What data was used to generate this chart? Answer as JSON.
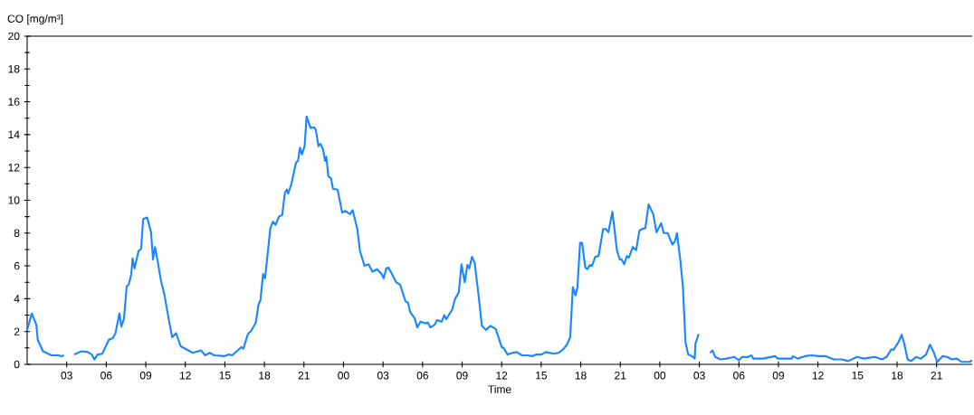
{
  "chart_data": {
    "type": "line",
    "xlabel": "Time",
    "ylabel": "CO [mg/m³]",
    "xlim": [
      0,
      71.7
    ],
    "ylim": [
      0,
      20
    ],
    "xticks": [
      {
        "value": 3,
        "label": "03"
      },
      {
        "value": 6,
        "label": "06"
      },
      {
        "value": 9,
        "label": "09"
      },
      {
        "value": 12,
        "label": "12"
      },
      {
        "value": 15,
        "label": "15"
      },
      {
        "value": 18,
        "label": "18"
      },
      {
        "value": 21,
        "label": "21"
      },
      {
        "value": 24,
        "label": "00"
      },
      {
        "value": 27,
        "label": "03"
      },
      {
        "value": 30,
        "label": "06"
      },
      {
        "value": 33,
        "label": "09"
      },
      {
        "value": 36,
        "label": "12"
      },
      {
        "value": 39,
        "label": "15"
      },
      {
        "value": 42,
        "label": "18"
      },
      {
        "value": 45,
        "label": "21"
      },
      {
        "value": 48,
        "label": "00"
      },
      {
        "value": 51,
        "label": "03"
      },
      {
        "value": 54,
        "label": "06"
      },
      {
        "value": 57,
        "label": "09"
      },
      {
        "value": 60,
        "label": "12"
      },
      {
        "value": 63,
        "label": "15"
      },
      {
        "value": 66,
        "label": "18"
      },
      {
        "value": 69,
        "label": "21"
      }
    ],
    "yticks": [
      0,
      {
        "value": 1,
        "label": null
      },
      2,
      {
        "value": 3,
        "label": null
      },
      4,
      {
        "value": 5,
        "label": null
      },
      6,
      {
        "value": 7,
        "label": null
      },
      8,
      {
        "value": 9,
        "label": null
      },
      10,
      {
        "value": 11,
        "label": null
      },
      12,
      {
        "value": 13,
        "label": null
      },
      14,
      {
        "value": 15,
        "label": null
      },
      16,
      {
        "value": 17,
        "label": null
      },
      18,
      {
        "value": 19,
        "label": null
      },
      20
    ],
    "grid": false,
    "marker": "none",
    "line_style": "solid",
    "series": [
      {
        "color": "#1a87ff",
        "x": [
          0,
          0.35,
          0.7,
          0.8,
          1.2,
          1.85,
          2.4,
          2.6,
          2.8,
          3.2,
          3.57,
          4.1,
          4.6,
          4.9,
          5.1,
          5.35,
          5.7,
          6.2,
          6.5,
          6.7,
          7.0,
          7.15,
          7.35,
          7.55,
          7.7,
          7.9,
          8.0,
          8.15,
          8.45,
          8.65,
          8.8,
          9.1,
          9.4,
          9.55,
          9.7,
          9.9,
          10.15,
          10.4,
          10.8,
          11.0,
          11.3,
          11.65,
          12.35,
          12.55,
          13.2,
          13.5,
          13.85,
          14.2,
          14.95,
          15.3,
          15.55,
          16.25,
          16.4,
          16.75,
          17.0,
          17.35,
          17.55,
          17.7,
          17.9,
          18.05,
          18.45,
          18.65,
          18.85,
          19.1,
          19.35,
          19.55,
          19.7,
          19.8,
          20.05,
          20.4,
          20.55,
          20.7,
          20.85,
          21.05,
          21.2,
          21.5,
          21.75,
          21.9,
          22.1,
          22.25,
          22.45,
          22.6,
          22.7,
          22.85,
          23.05,
          23.2,
          23.55,
          23.9,
          24.15,
          24.5,
          24.7,
          25.05,
          25.25,
          25.6,
          25.9,
          26.2,
          26.55,
          26.9,
          27.05,
          27.25,
          27.4,
          27.65,
          28.0,
          28.3,
          28.7,
          28.9,
          29.05,
          29.4,
          29.6,
          29.85,
          30.2,
          30.4,
          30.6,
          30.9,
          31.1,
          31.45,
          31.65,
          31.8,
          32.25,
          32.45,
          32.75,
          32.95,
          33.2,
          33.4,
          33.55,
          33.75,
          33.95,
          34.25,
          34.5,
          34.8,
          35.15,
          35.55,
          35.8,
          36.0,
          36.15,
          36.45,
          36.85,
          37.15,
          37.55,
          37.95,
          38.3,
          38.65,
          39.0,
          39.35,
          39.95,
          40.3,
          40.65,
          40.95,
          41.2,
          41.4,
          41.6,
          41.75,
          41.95,
          42.1,
          42.35,
          42.5,
          42.7,
          42.85,
          43.1,
          43.35,
          43.7,
          43.9,
          44.1,
          44.4,
          44.75,
          44.95,
          45.1,
          45.3,
          45.5,
          45.65,
          45.95,
          46.2,
          46.45,
          46.65,
          46.9,
          47.15,
          47.5,
          47.75,
          48.1,
          48.3,
          48.6,
          48.95,
          49.15,
          49.3,
          49.55,
          49.75,
          49.95,
          50.15,
          50.45,
          50.65,
          50.7,
          50.95,
          51.4,
          51.8,
          52.0,
          52.2,
          52.6,
          53.05,
          53.65,
          54.0,
          54.25,
          54.7,
          54.95,
          55.1,
          55.8,
          56.75,
          56.95,
          58.0,
          58.1,
          58.45,
          59.0,
          59.5,
          60.05,
          60.6,
          61.2,
          61.8,
          62.3,
          62.95,
          63.5,
          64.3,
          64.85,
          65.2,
          65.55,
          65.75,
          66.1,
          66.35,
          66.55,
          66.8,
          67.05,
          67.45,
          67.8,
          68.2,
          68.5,
          68.75,
          69.05,
          69.45,
          69.8,
          70.15,
          70.55,
          70.9,
          71.5,
          71.7
        ],
        "values": [
          2.1,
          3.1,
          2.4,
          1.5,
          0.8,
          0.55,
          0.55,
          0.5,
          0.55,
          null,
          0.6,
          0.8,
          0.75,
          0.6,
          0.3,
          0.6,
          0.65,
          1.5,
          1.6,
          1.9,
          3.1,
          2.3,
          2.8,
          4.75,
          4.85,
          5.5,
          6.45,
          5.85,
          6.9,
          7.05,
          8.85,
          8.95,
          8.05,
          6.4,
          7.15,
          6.3,
          5.1,
          4.3,
          2.5,
          1.65,
          1.9,
          1.1,
          0.8,
          0.7,
          0.85,
          0.55,
          0.7,
          0.55,
          0.5,
          0.6,
          0.55,
          1.05,
          0.95,
          1.85,
          2.05,
          2.55,
          3.65,
          3.9,
          5.5,
          5.25,
          8.3,
          8.7,
          8.5,
          9.0,
          9.1,
          10.45,
          10.65,
          10.4,
          11.0,
          12.3,
          12.4,
          13.2,
          12.8,
          13.3,
          15.1,
          14.4,
          14.45,
          14.3,
          13.3,
          13.45,
          13.1,
          12.4,
          12.65,
          11.45,
          11.35,
          10.7,
          10.65,
          9.25,
          9.35,
          9.15,
          9.4,
          8.25,
          6.9,
          6.0,
          6.1,
          5.65,
          5.8,
          5.5,
          5.25,
          5.85,
          5.9,
          5.55,
          5.0,
          4.85,
          3.85,
          3.75,
          3.2,
          2.8,
          2.25,
          2.6,
          2.5,
          2.55,
          2.25,
          2.4,
          2.7,
          2.6,
          3.0,
          2.75,
          3.35,
          3.95,
          4.4,
          6.1,
          5.0,
          6.05,
          5.85,
          6.55,
          6.2,
          4.2,
          2.35,
          2.1,
          2.35,
          2.15,
          1.55,
          1.05,
          1.0,
          0.6,
          0.7,
          0.75,
          0.55,
          0.55,
          0.5,
          0.6,
          0.6,
          0.75,
          0.65,
          0.7,
          0.9,
          1.2,
          1.65,
          4.7,
          4.2,
          4.7,
          7.4,
          7.4,
          5.9,
          5.8,
          6.05,
          6.0,
          6.55,
          6.6,
          8.25,
          8.25,
          8.05,
          9.3,
          6.95,
          6.4,
          6.4,
          6.1,
          6.6,
          6.5,
          7.15,
          6.95,
          8.15,
          8.25,
          8.3,
          9.75,
          9.15,
          8.05,
          8.6,
          8.0,
          8.0,
          7.3,
          7.5,
          8.0,
          6.4,
          4.75,
          1.35,
          0.6,
          0.5,
          0.35,
          1.25,
          1.85,
          null,
          0.7,
          0.85,
          0.45,
          0.3,
          0.35,
          0.45,
          0.25,
          0.45,
          0.45,
          0.55,
          0.35,
          0.35,
          0.5,
          0.35,
          0.35,
          0.5,
          0.35,
          0.5,
          0.55,
          0.5,
          0.5,
          0.3,
          0.3,
          0.2,
          0.45,
          0.35,
          0.45,
          0.3,
          0.45,
          0.9,
          0.9,
          1.35,
          1.8,
          1.25,
          0.3,
          0.2,
          0.45,
          0.35,
          0.6,
          1.2,
          0.8,
          0.15,
          0.5,
          0.45,
          0.3,
          0.35,
          0.15,
          0.15,
          0.25
        ]
      }
    ]
  }
}
